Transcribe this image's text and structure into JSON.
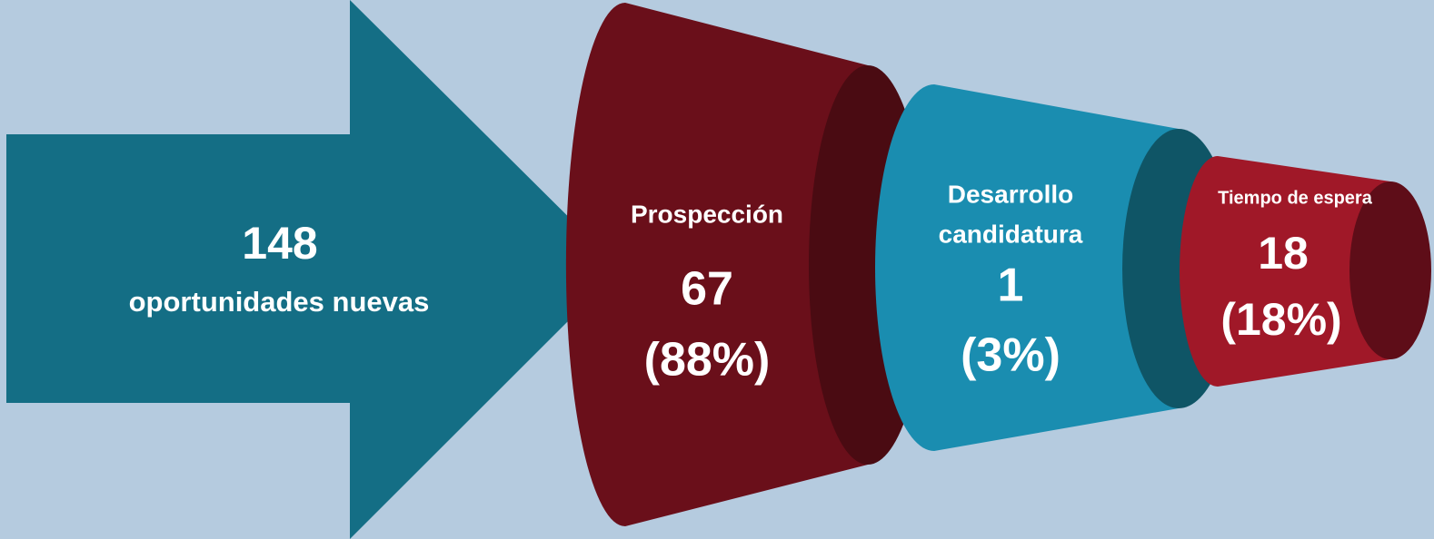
{
  "arrow": {
    "count": "148",
    "label": "oportunidades nuevas"
  },
  "stages": [
    {
      "name_lines": [
        "Prospección"
      ],
      "count": "67",
      "percent": "(88%)"
    },
    {
      "name_lines": [
        "Desarrollo",
        "candidatura"
      ],
      "count": "1",
      "percent": "(3%)"
    },
    {
      "name_lines": [
        "Tiempo de espera"
      ],
      "count": "18",
      "percent": "(18%)"
    }
  ]
}
